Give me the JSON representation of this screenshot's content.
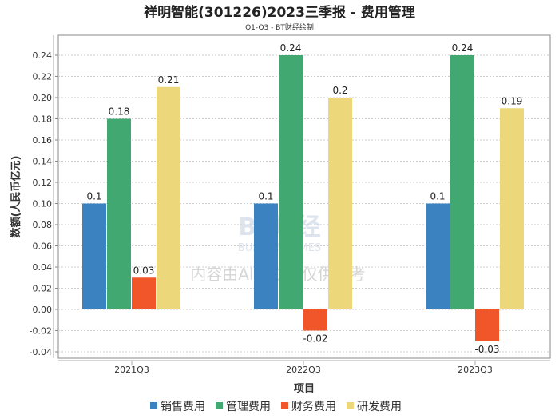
{
  "chart_data": {
    "type": "bar",
    "title": "祥明智能(301226)2023三季报 - 费用管理",
    "subtitle": "Q1-Q3 - BT财经绘制",
    "xlabel": "项目",
    "ylabel": "数额(人民币亿元)",
    "categories": [
      "2021Q3",
      "2022Q3",
      "2023Q3"
    ],
    "series": [
      {
        "name": "销售费用",
        "color": "#3a82c0",
        "values": [
          0.1,
          0.1,
          0.1
        ],
        "labels": [
          "0.1",
          "0.1",
          "0.1"
        ]
      },
      {
        "name": "管理费用",
        "color": "#41a872",
        "values": [
          0.18,
          0.24,
          0.24
        ],
        "labels": [
          "0.18",
          "0.24",
          "0.24"
        ]
      },
      {
        "name": "财务费用",
        "color": "#f0562a",
        "values": [
          0.03,
          -0.02,
          -0.03
        ],
        "labels": [
          "0.03",
          "-0.02",
          "-0.03"
        ]
      },
      {
        "name": "研发费用",
        "color": "#ecd77a",
        "values": [
          0.21,
          0.2,
          0.19
        ],
        "labels": [
          "0.21",
          "0.2",
          "0.19"
        ]
      }
    ],
    "yticks": [
      "0.24",
      "0.22",
      "0.20",
      "0.18",
      "0.16",
      "0.14",
      "0.12",
      "0.10",
      "0.08",
      "0.06",
      "0.04",
      "0.02",
      "0.00",
      "-0.02",
      "-0.04"
    ],
    "ylim": [
      -0.046,
      0.259
    ],
    "grid": true,
    "legend": "bottom",
    "watermark": {
      "logo": "BT财经",
      "sub": "BUSINESSTIMES",
      "text": "内容由AI生成，仅供参考"
    }
  }
}
